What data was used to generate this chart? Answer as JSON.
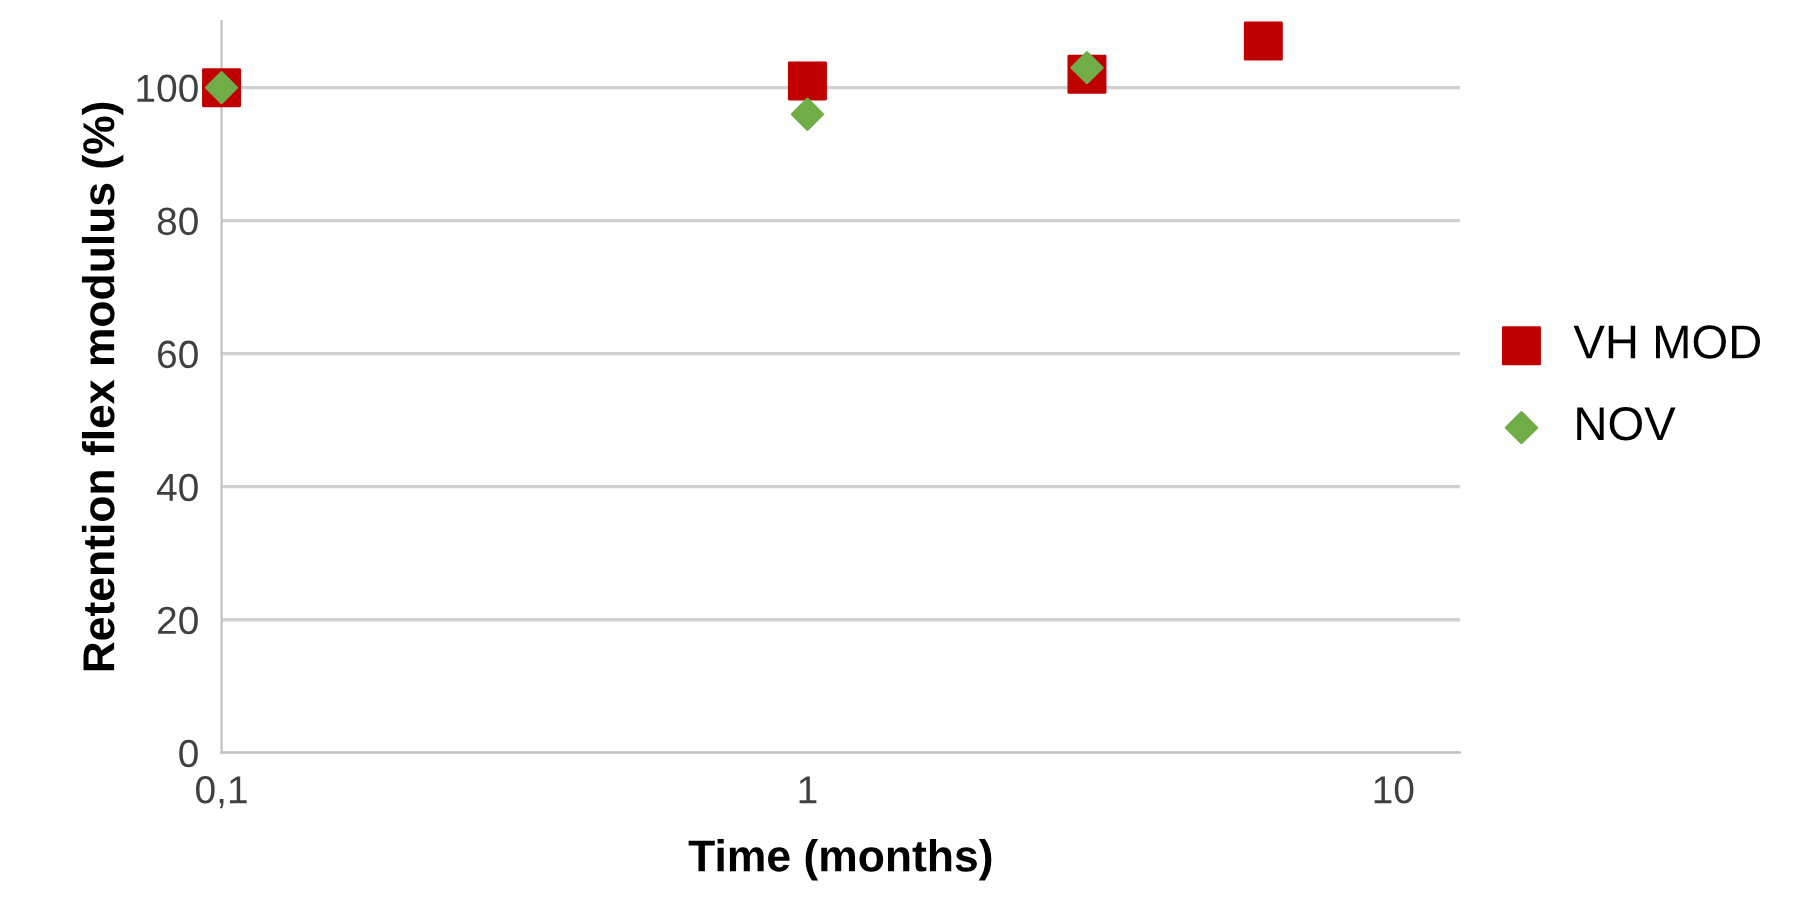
{
  "chart_data": {
    "type": "scatter",
    "xlabel": "Time (months)",
    "ylabel": "Retention flex modulus (%)",
    "log": "x",
    "xlim": [
      0.1,
      13
    ],
    "xticks": [
      {
        "value": 0.1,
        "label": "0,1"
      },
      1,
      10
    ],
    "ylim": [
      0,
      110
    ],
    "yticks": [
      0,
      20,
      40,
      60,
      80,
      100
    ],
    "grid": "y",
    "legend": "right",
    "series": [
      {
        "name": "VH MOD",
        "color": "#c00000",
        "marker": "square",
        "x": [
          0.1,
          1,
          3,
          6
        ],
        "values": [
          100,
          101,
          102,
          107
        ]
      },
      {
        "name": "NOV",
        "color": "#70ad47",
        "marker": "diamond",
        "x": [
          0.1,
          1,
          3
        ],
        "values": [
          100,
          96,
          103
        ]
      }
    ]
  }
}
